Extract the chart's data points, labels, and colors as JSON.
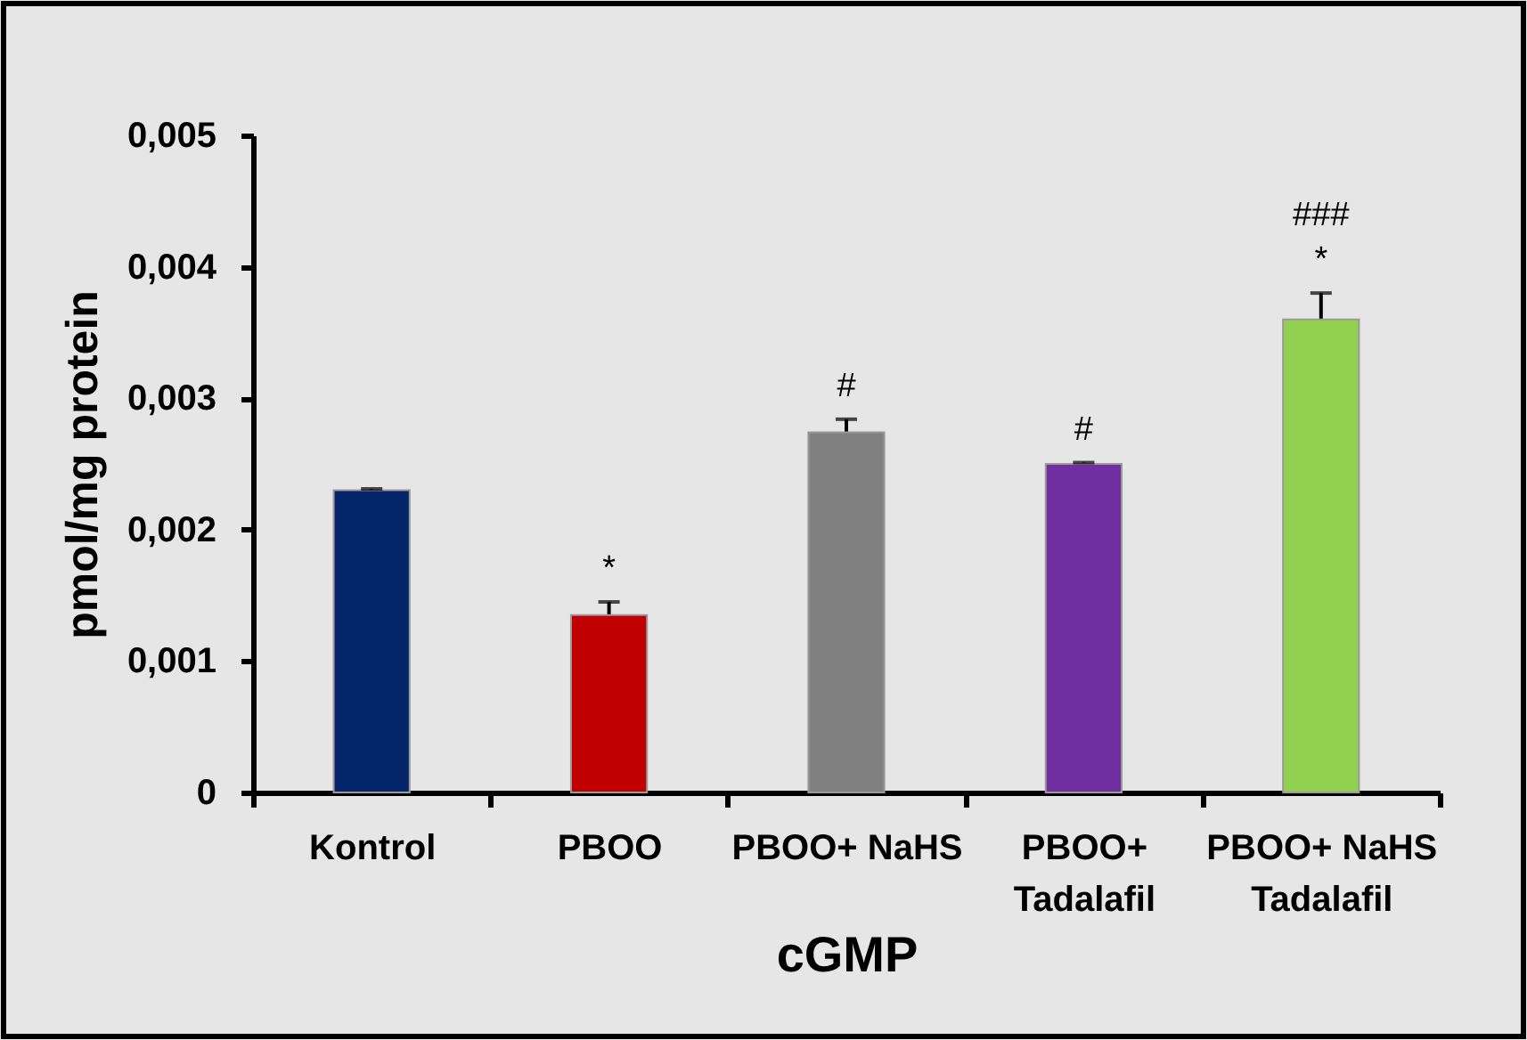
{
  "chart_data": {
    "type": "bar",
    "xlabel": "cGMP",
    "ylabel": "pmol/mg protein",
    "categories": [
      "Kontrol",
      "PBOO",
      "PBOO+ NaHS",
      "PBOO+\nTadalafil",
      "PBOO+ NaHS\nTadalafil"
    ],
    "values": [
      0.0023,
      0.00135,
      0.00274,
      0.0025,
      0.0036
    ],
    "colors": [
      "#06266b",
      "#c00000",
      "#808080",
      "#7030a0",
      "#92d050"
    ],
    "errors": [
      1e-05,
      0.0001,
      0.0001,
      1e-05,
      0.0002
    ],
    "ylim": [
      0,
      0.005
    ],
    "yticks": [
      0,
      {
        "value": 0.001,
        "label": "0,001"
      },
      {
        "value": 0.002,
        "label": "0,002"
      },
      {
        "value": 0.003,
        "label": "0,003"
      },
      {
        "value": 0.004,
        "label": "0,004"
      },
      {
        "value": 0.005,
        "label": "0,005"
      }
    ],
    "annotations": [
      {
        "text": "*",
        "x": "PBOO",
        "y": 0.00135
      },
      {
        "text": "#",
        "x": "PBOO+ NaHS",
        "y": 0.00274
      },
      {
        "text": "#",
        "x": "PBOO+\nTadalafil",
        "y": 0.0025
      },
      {
        "text": "*",
        "x": "PBOO+ NaHS\nTadalafil",
        "y": 0.0036
      },
      {
        "text": "###",
        "x": "PBOO+ NaHS\nTadalafil",
        "y": 0.0036
      }
    ],
    "grid": false
  }
}
